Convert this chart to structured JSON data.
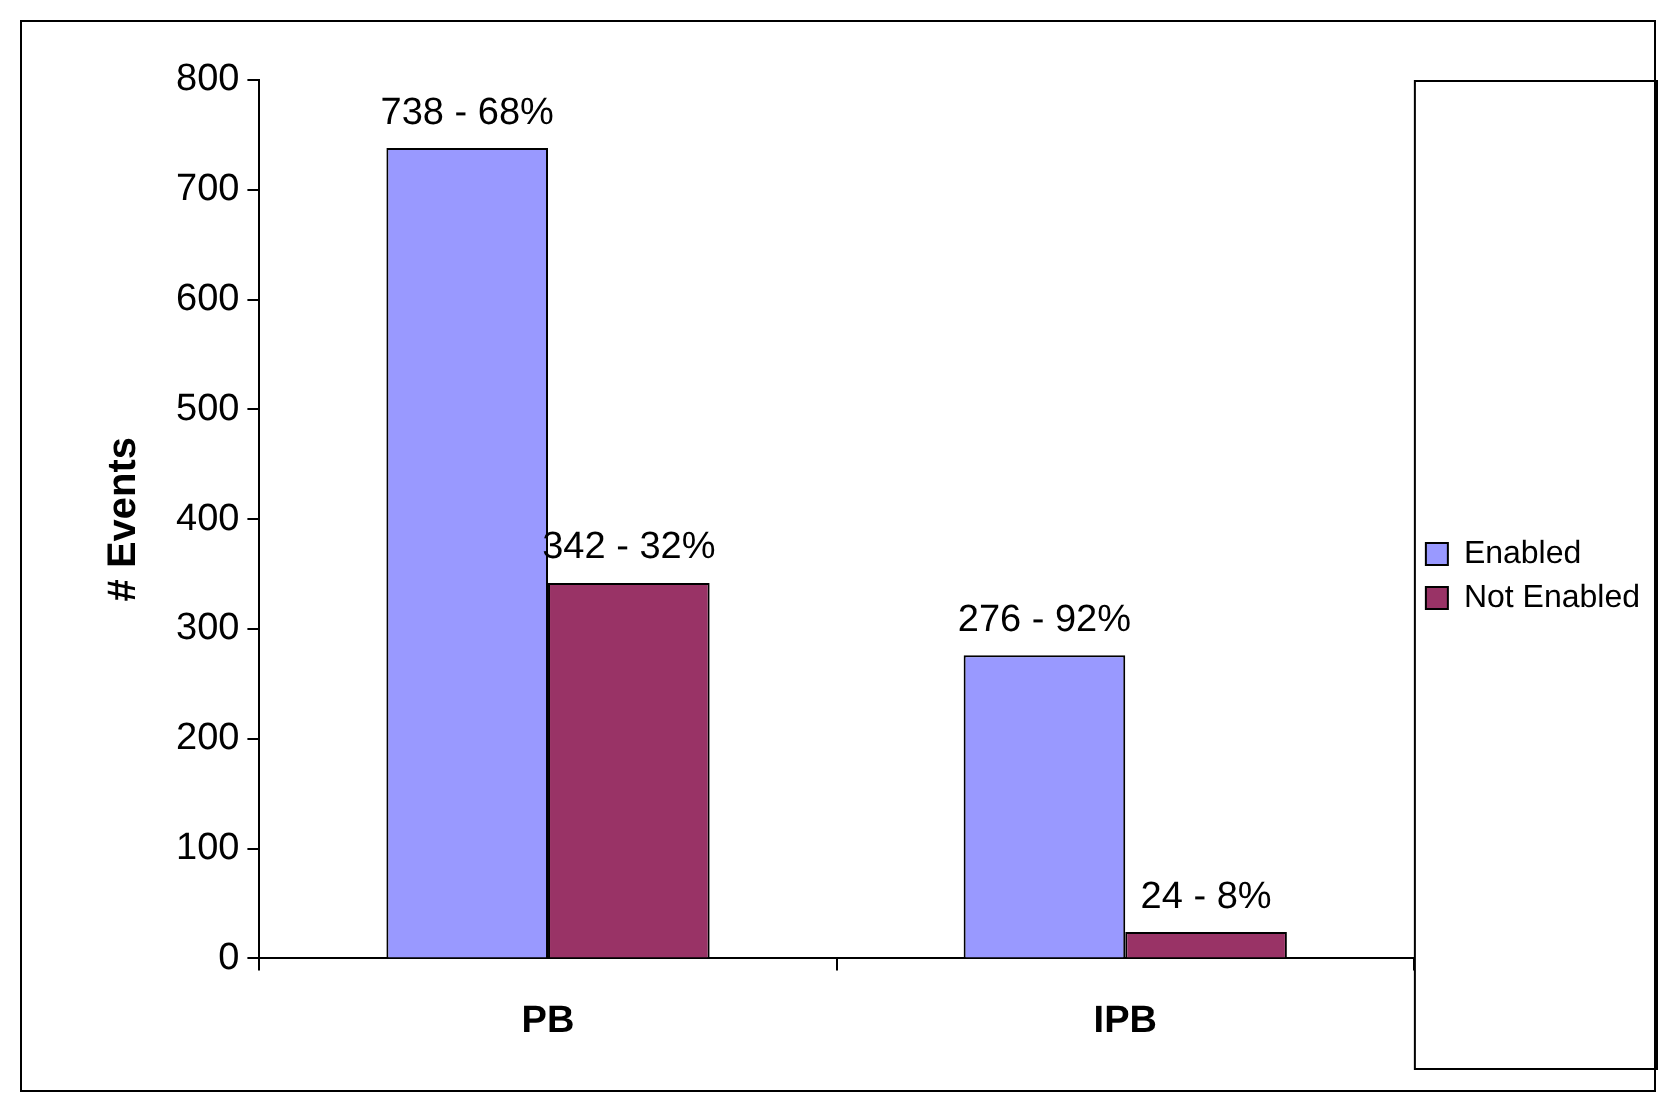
{
  "chart_data": {
    "type": "bar",
    "ylabel": "# Events",
    "categories": [
      "PB",
      "IPB"
    ],
    "series": [
      {
        "name": "Enabled",
        "color": "#9999ff",
        "values": [
          738,
          276
        ],
        "value_labels": [
          "738 - 68%",
          "276 - 92%"
        ]
      },
      {
        "name": "Not Enabled",
        "color": "#993366",
        "values": [
          342,
          24
        ],
        "value_labels": [
          "342 - 32%",
          "24 - 8%"
        ]
      }
    ],
    "ylim": [
      0,
      800
    ],
    "yticks": [
      0,
      100,
      200,
      300,
      400,
      500,
      600,
      700,
      800
    ],
    "grid": false,
    "legend": "right"
  }
}
